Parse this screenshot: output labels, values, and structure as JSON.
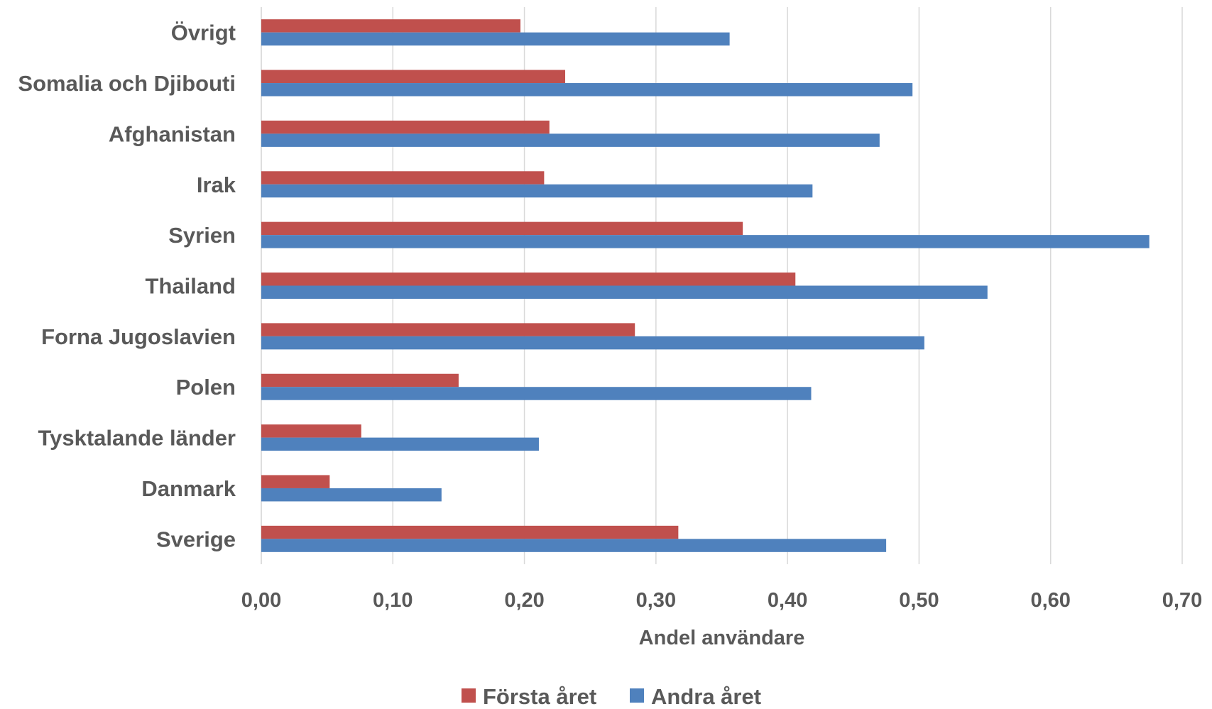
{
  "chart_data": {
    "type": "bar",
    "orientation": "horizontal",
    "categories": [
      "Sverige",
      "Danmark",
      "Tysktalande länder",
      "Polen",
      "Forna Jugoslavien",
      "Thailand",
      "Syrien",
      "Irak",
      "Afghanistan",
      "Somalia och Djibouti",
      "Övrigt"
    ],
    "series": [
      {
        "name": "Första året",
        "color": "#c0504d",
        "values": [
          0.317,
          0.052,
          0.076,
          0.15,
          0.284,
          0.406,
          0.366,
          0.215,
          0.219,
          0.231,
          0.197
        ]
      },
      {
        "name": "Andra året",
        "color": "#4f81bd",
        "values": [
          0.475,
          0.137,
          0.211,
          0.418,
          0.504,
          0.552,
          0.675,
          0.419,
          0.47,
          0.495,
          0.356
        ]
      }
    ],
    "xlabel": "Andel användare",
    "xlim": [
      0,
      0.7
    ],
    "xticks": [
      "0,00",
      "0,10",
      "0,20",
      "0,30",
      "0,40",
      "0,50",
      "0,60",
      "0,70"
    ],
    "grid": true,
    "legend_position": "bottom"
  }
}
